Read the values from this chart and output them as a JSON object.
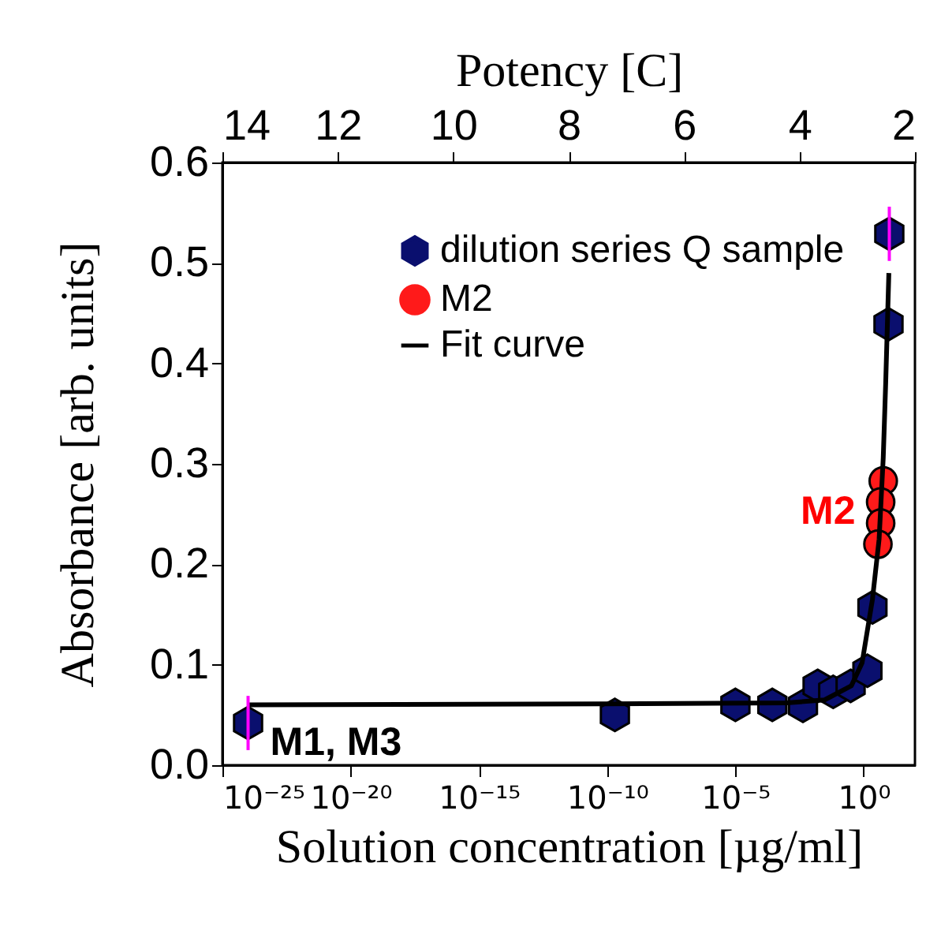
{
  "chart_data": {
    "type": "scatter",
    "xlabel": "Solution concentration  [µg/ml]",
    "ylabel": "Absorbance [arb. units]",
    "x2label": "Potency [C]",
    "log": "x",
    "xlim": [
      1e-25,
      100
    ],
    "ylim": [
      0,
      0.6
    ],
    "x2lim": [
      14,
      2
    ],
    "xticks": [
      {
        "value": 1e-25,
        "label": "10⁻²⁵"
      },
      {
        "value": 1e-20,
        "label": "10⁻²⁰"
      },
      {
        "value": 1e-15,
        "label": "10⁻¹⁵"
      },
      {
        "value": 1e-10,
        "label": "10⁻¹⁰"
      },
      {
        "value": 1e-05,
        "label": "10⁻⁵"
      },
      {
        "value": 1,
        "label": "10⁰"
      }
    ],
    "yticks": [
      {
        "value": 0,
        "label": "0.0"
      },
      0.1,
      0.2,
      0.3,
      0.4,
      0.5,
      0.6
    ],
    "x2ticks": [
      14,
      12,
      10,
      8,
      6,
      4,
      2
    ],
    "legend": "top right",
    "grid": false,
    "series": [
      {
        "name": "dilution series Q sample",
        "type": "scatter",
        "color": "#0a0f6e",
        "x": [
          1e-24,
          2e-10,
          1e-05,
          0.000275,
          0.0043,
          0.016,
          0.065,
          0.31,
          1.4,
          2.2,
          9.3,
          10
        ],
        "values": [
          0.042,
          0.05,
          0.06,
          0.06,
          0.059,
          0.079,
          0.073,
          0.079,
          0.094,
          0.157,
          0.439,
          0.529
        ],
        "errors": [
          0.027,
          null,
          null,
          null,
          null,
          null,
          null,
          null,
          null,
          null,
          null,
          0.027
        ]
      },
      {
        "name": "M2",
        "type": "scatter",
        "marker": "circle",
        "color": "#ff1a1a",
        "x": [
          5.8,
          4.6,
          4.6,
          3.6
        ],
        "values": [
          0.283,
          0.262,
          0.241,
          0.22
        ]
      },
      {
        "name": "Fit curve",
        "type": "line",
        "color": "#000000",
        "x": [
          1e-24,
          1e-10,
          0.001,
          0.03,
          0.33,
          0.87,
          2.2,
          4,
          5.8,
          7.2,
          9.6
        ],
        "values": [
          0.06,
          0.061,
          0.062,
          0.065,
          0.079,
          0.102,
          0.165,
          0.225,
          0.306,
          0.379,
          0.49
        ]
      }
    ],
    "annotations": [
      {
        "text": "M1, M3",
        "x": 1e-24,
        "y": 0.042
      },
      {
        "text": "M2",
        "x": 4.6,
        "y": 0.25
      }
    ]
  }
}
